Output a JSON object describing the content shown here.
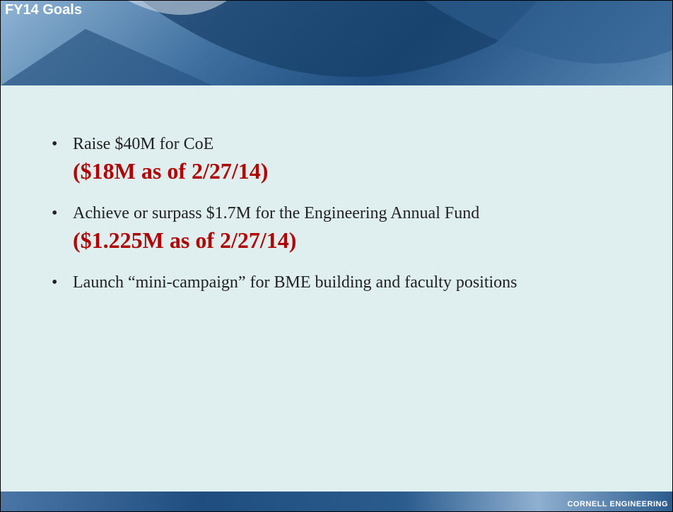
{
  "header": {
    "title": "FY14 Goals"
  },
  "bullets": [
    {
      "text": "Raise $40M for CoE",
      "note": "($18M as of 2/27/14)"
    },
    {
      "text": "Achieve or surpass $1.7M for the Engineering Annual Fund",
      "note": "($1.225M as of 2/27/14)"
    },
    {
      "text": "Launch “mini-campaign” for BME building and faculty positions"
    }
  ],
  "footer": {
    "brand": "CORNELL ENGINEERING"
  }
}
